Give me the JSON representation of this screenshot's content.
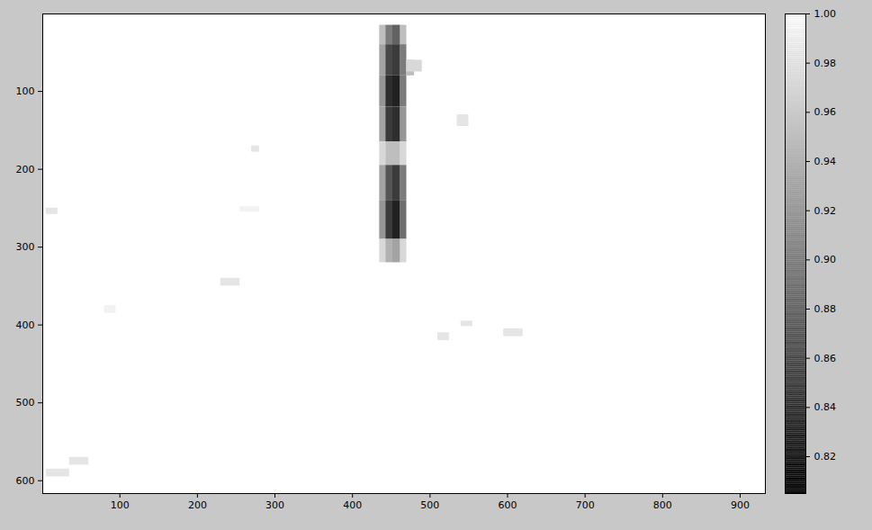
{
  "chart_data": {
    "type": "heatmap",
    "xlim": [
      0.5,
      932.5
    ],
    "ylim": [
      0.5,
      616.5
    ],
    "xticks": [
      100,
      200,
      300,
      400,
      500,
      600,
      700,
      800,
      900
    ],
    "yticks": [
      100,
      200,
      300,
      400,
      500,
      600
    ],
    "clim": [
      0.805,
      1
    ],
    "cticks": [
      0.82,
      0.84,
      0.86,
      0.88,
      0.9,
      0.92,
      0.94,
      0.96,
      0.98,
      1
    ],
    "cells": [
      {
        "x0": 0.5,
        "x1": 932.5,
        "y0": 0.5,
        "y1": 616.5,
        "value": 1
      },
      {
        "x0": 435,
        "x1": 443,
        "y0": 15,
        "y1": 40,
        "value": 0.95
      },
      {
        "x0": 443,
        "x1": 452,
        "y0": 15,
        "y1": 40,
        "value": 0.9
      },
      {
        "x0": 452,
        "x1": 462,
        "y0": 15,
        "y1": 40,
        "value": 0.88
      },
      {
        "x0": 462,
        "x1": 470,
        "y0": 15,
        "y1": 40,
        "value": 0.95
      },
      {
        "x0": 435,
        "x1": 443,
        "y0": 40,
        "y1": 80,
        "value": 0.93
      },
      {
        "x0": 443,
        "x1": 452,
        "y0": 40,
        "y1": 80,
        "value": 0.86
      },
      {
        "x0": 452,
        "x1": 462,
        "y0": 40,
        "y1": 80,
        "value": 0.85
      },
      {
        "x0": 462,
        "x1": 470,
        "y0": 40,
        "y1": 80,
        "value": 0.9
      },
      {
        "x0": 470,
        "x1": 480,
        "y0": 60,
        "y1": 80,
        "value": 0.95
      },
      {
        "x0": 435,
        "x1": 443,
        "y0": 80,
        "y1": 120,
        "value": 0.92
      },
      {
        "x0": 443,
        "x1": 452,
        "y0": 80,
        "y1": 120,
        "value": 0.84
      },
      {
        "x0": 452,
        "x1": 462,
        "y0": 80,
        "y1": 120,
        "value": 0.83
      },
      {
        "x0": 462,
        "x1": 470,
        "y0": 80,
        "y1": 120,
        "value": 0.9
      },
      {
        "x0": 435,
        "x1": 443,
        "y0": 120,
        "y1": 165,
        "value": 0.93
      },
      {
        "x0": 443,
        "x1": 452,
        "y0": 120,
        "y1": 165,
        "value": 0.85
      },
      {
        "x0": 452,
        "x1": 462,
        "y0": 120,
        "y1": 165,
        "value": 0.84
      },
      {
        "x0": 462,
        "x1": 470,
        "y0": 120,
        "y1": 165,
        "value": 0.92
      },
      {
        "x0": 435,
        "x1": 443,
        "y0": 165,
        "y1": 195,
        "value": 0.97
      },
      {
        "x0": 443,
        "x1": 452,
        "y0": 165,
        "y1": 195,
        "value": 0.95
      },
      {
        "x0": 452,
        "x1": 462,
        "y0": 165,
        "y1": 195,
        "value": 0.95
      },
      {
        "x0": 462,
        "x1": 470,
        "y0": 165,
        "y1": 195,
        "value": 0.97
      },
      {
        "x0": 435,
        "x1": 443,
        "y0": 195,
        "y1": 240,
        "value": 0.93
      },
      {
        "x0": 443,
        "x1": 452,
        "y0": 195,
        "y1": 240,
        "value": 0.87
      },
      {
        "x0": 452,
        "x1": 462,
        "y0": 195,
        "y1": 240,
        "value": 0.85
      },
      {
        "x0": 462,
        "x1": 470,
        "y0": 195,
        "y1": 240,
        "value": 0.9
      },
      {
        "x0": 435,
        "x1": 443,
        "y0": 240,
        "y1": 290,
        "value": 0.92
      },
      {
        "x0": 443,
        "x1": 452,
        "y0": 240,
        "y1": 290,
        "value": 0.85
      },
      {
        "x0": 452,
        "x1": 462,
        "y0": 240,
        "y1": 290,
        "value": 0.83
      },
      {
        "x0": 462,
        "x1": 470,
        "y0": 240,
        "y1": 290,
        "value": 0.89
      },
      {
        "x0": 435,
        "x1": 443,
        "y0": 290,
        "y1": 320,
        "value": 0.97
      },
      {
        "x0": 443,
        "x1": 452,
        "y0": 290,
        "y1": 320,
        "value": 0.94
      },
      {
        "x0": 452,
        "x1": 462,
        "y0": 290,
        "y1": 320,
        "value": 0.93
      },
      {
        "x0": 462,
        "x1": 470,
        "y0": 290,
        "y1": 320,
        "value": 0.97
      },
      {
        "x0": 535,
        "x1": 550,
        "y0": 130,
        "y1": 145,
        "value": 0.98
      },
      {
        "x0": 230,
        "x1": 255,
        "y0": 340,
        "y1": 350,
        "value": 0.98
      },
      {
        "x0": 510,
        "x1": 525,
        "y0": 410,
        "y1": 420,
        "value": 0.98
      },
      {
        "x0": 595,
        "x1": 620,
        "y0": 405,
        "y1": 415,
        "value": 0.98
      },
      {
        "x0": 5,
        "x1": 35,
        "y0": 585,
        "y1": 595,
        "value": 0.98
      },
      {
        "x0": 35,
        "x1": 60,
        "y0": 570,
        "y1": 580,
        "value": 0.98
      },
      {
        "x0": 80,
        "x1": 95,
        "y0": 375,
        "y1": 385,
        "value": 0.99
      },
      {
        "x0": 5,
        "x1": 20,
        "y0": 250,
        "y1": 258,
        "value": 0.98
      },
      {
        "x0": 540,
        "x1": 555,
        "y0": 395,
        "y1": 402,
        "value": 0.98
      },
      {
        "x0": 255,
        "x1": 280,
        "y0": 248,
        "y1": 255,
        "value": 0.99
      },
      {
        "x0": 470,
        "x1": 490,
        "y0": 60,
        "y1": 75,
        "value": 0.97
      },
      {
        "x0": 270,
        "x1": 280,
        "y0": 170,
        "y1": 178,
        "value": 0.98
      }
    ]
  }
}
